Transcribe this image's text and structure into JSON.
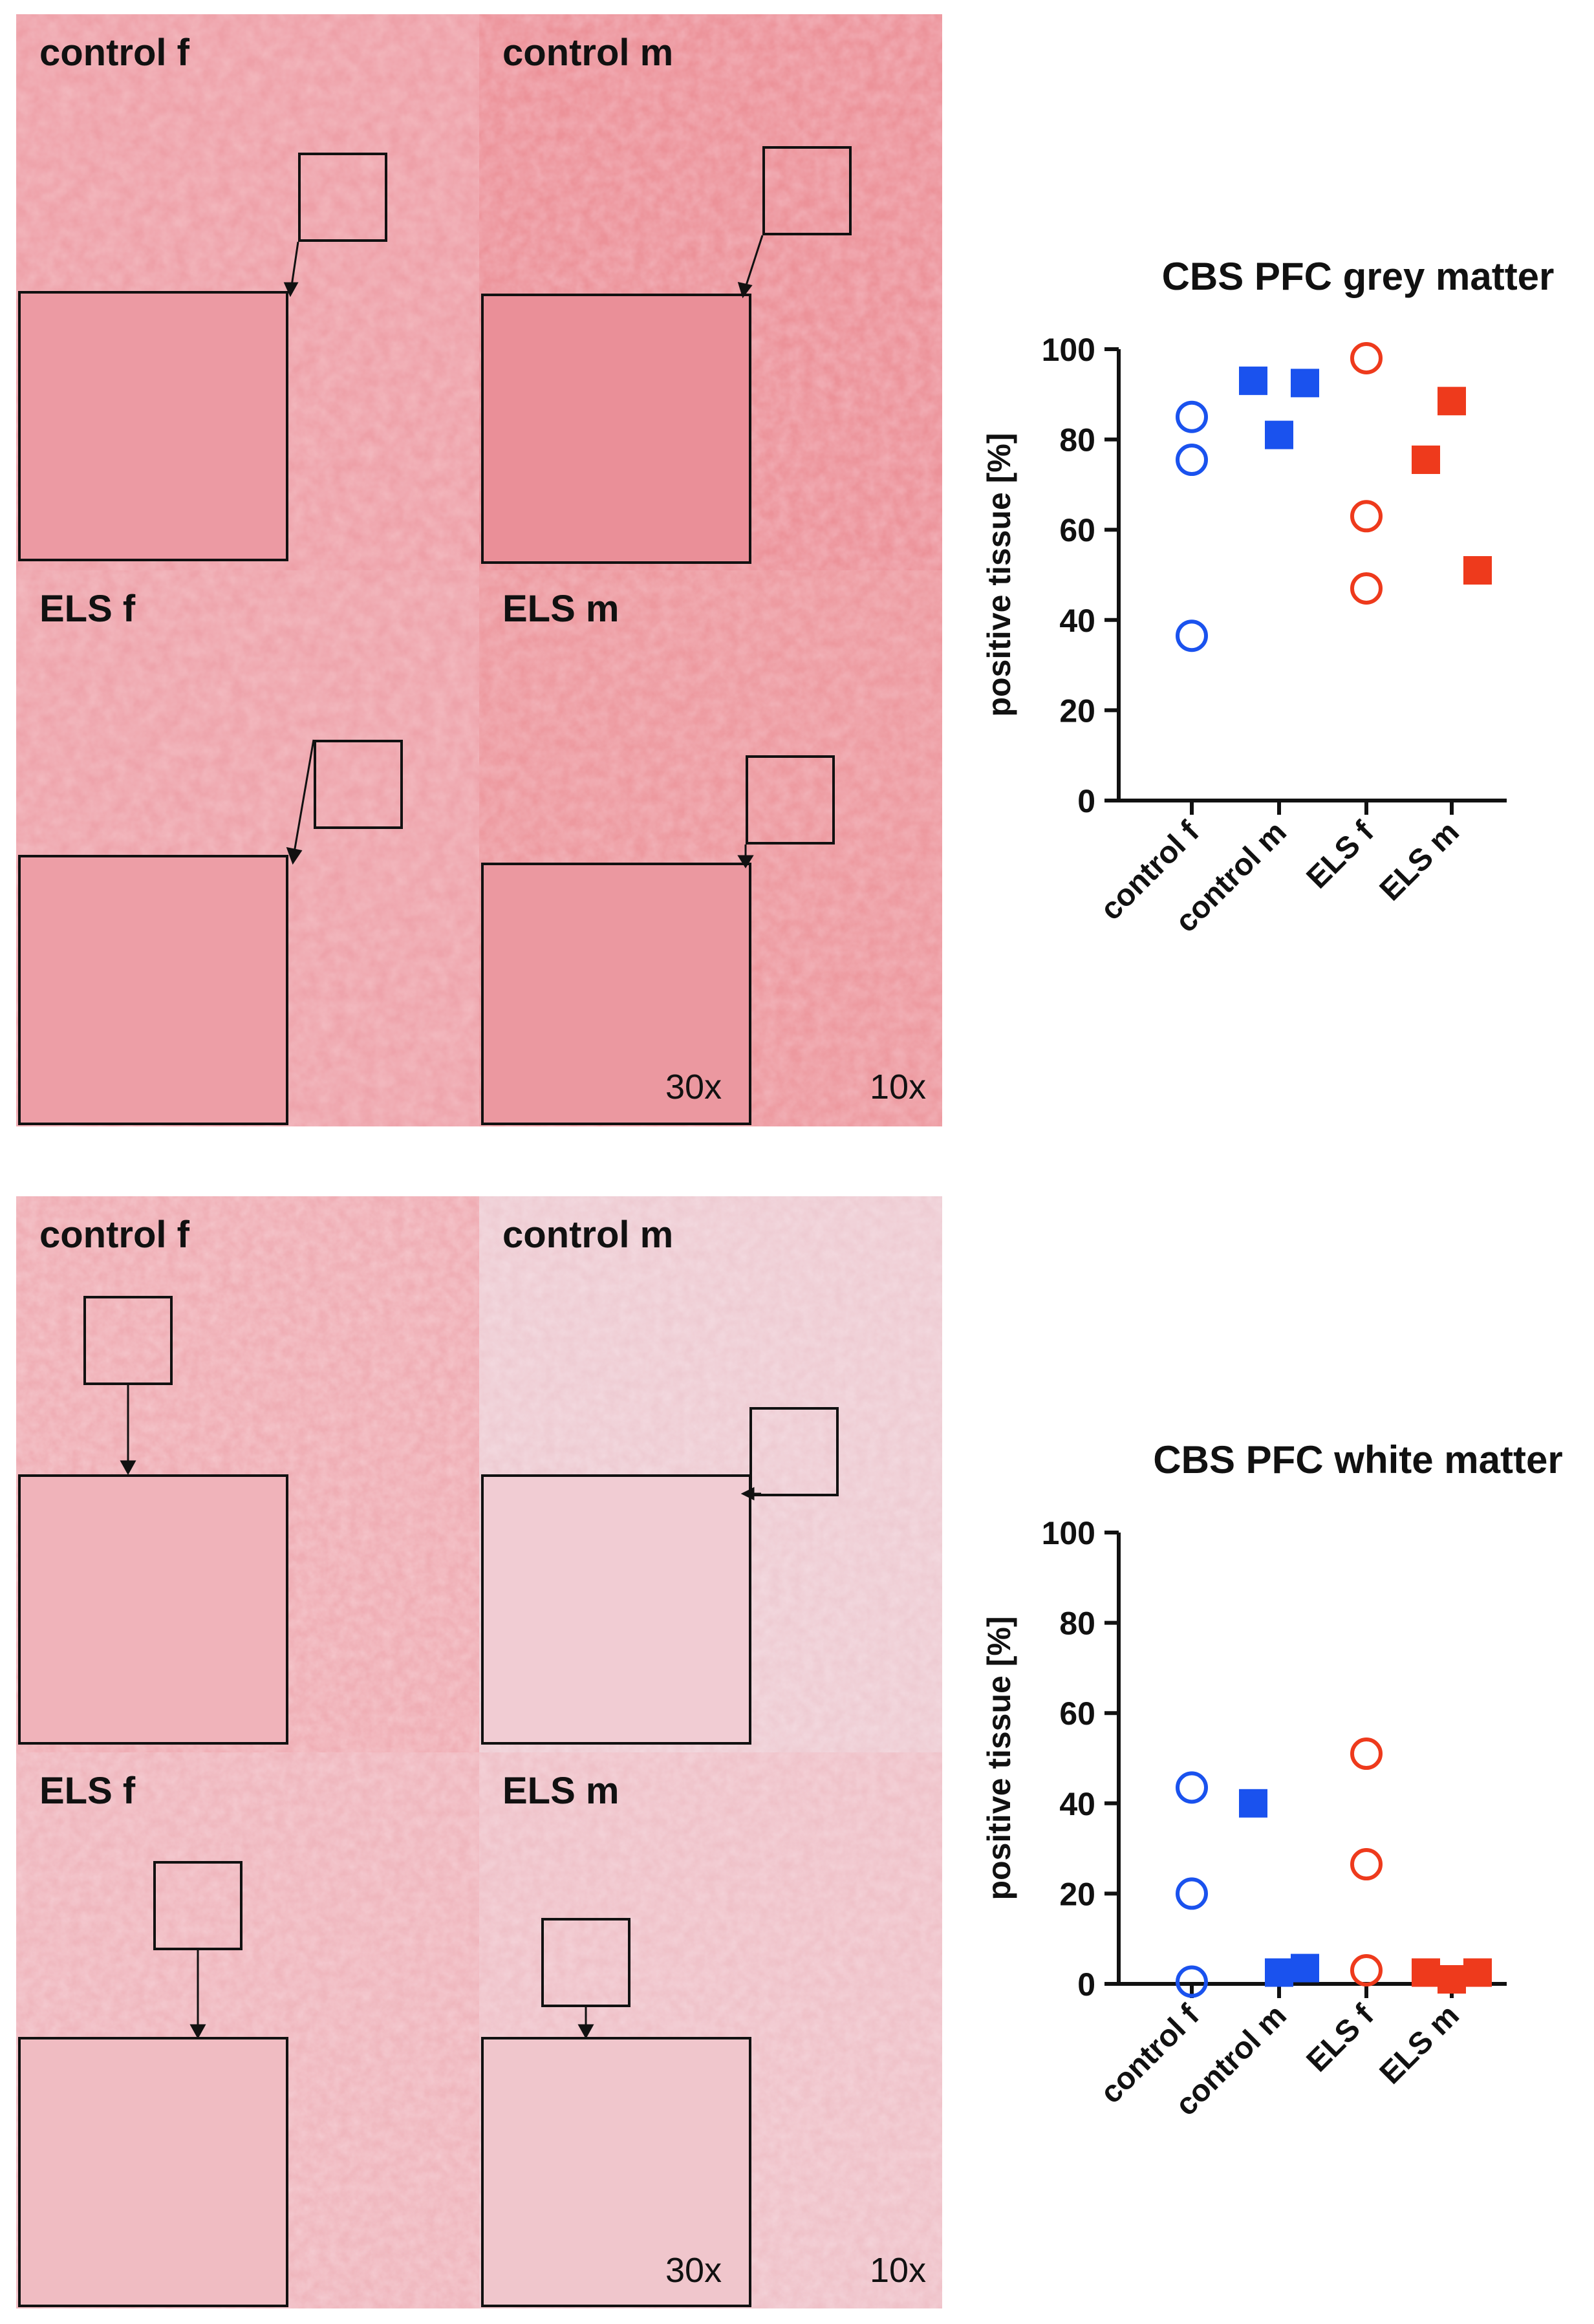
{
  "figure": {
    "top_panels": [
      {
        "key": "control_f",
        "label": "control f"
      },
      {
        "key": "control_m",
        "label": "control m"
      },
      {
        "key": "els_f",
        "label": "ELS f"
      },
      {
        "key": "els_m",
        "label": "ELS m"
      }
    ],
    "bottom_panels": [
      {
        "key": "control_f",
        "label": "control f"
      },
      {
        "key": "control_m",
        "label": "control m"
      },
      {
        "key": "els_f",
        "label": "ELS f"
      },
      {
        "key": "els_m",
        "label": "ELS m"
      }
    ],
    "magnification_inset": "30x",
    "magnification_overview": "10x",
    "colors": {
      "control": "#1a52ee",
      "els": "#ee3a1c",
      "tissue_grey": "#ec9da5",
      "tissue_white": "#edc3ca"
    }
  },
  "chart_data": [
    {
      "type": "scatter",
      "title": "CBS PFC grey matter",
      "ylabel": "positive tissue [%]",
      "xlabel": "",
      "ylim": [
        0,
        100
      ],
      "yticks": [
        0,
        20,
        40,
        60,
        80,
        100
      ],
      "categories": [
        "control f",
        "control m",
        "ELS f",
        "ELS m"
      ],
      "series": [
        {
          "category": "control f",
          "marker": "open-circle",
          "color": "#1a52ee",
          "values": [
            85,
            75.5,
            36.5
          ]
        },
        {
          "category": "control m",
          "marker": "filled-square",
          "color": "#1a52ee",
          "values": [
            93,
            81,
            92.5
          ]
        },
        {
          "category": "ELS f",
          "marker": "open-circle",
          "color": "#ee3a1c",
          "values": [
            98,
            63,
            47
          ]
        },
        {
          "category": "ELS m",
          "marker": "filled-square",
          "color": "#ee3a1c",
          "values": [
            88.5,
            75.5,
            51
          ]
        }
      ]
    },
    {
      "type": "scatter",
      "title": "CBS PFC white matter",
      "ylabel": "positive tissue [%]",
      "xlabel": "",
      "ylim": [
        0,
        100
      ],
      "yticks": [
        0,
        20,
        40,
        60,
        80,
        100
      ],
      "categories": [
        "control f",
        "control m",
        "ELS f",
        "ELS m"
      ],
      "series": [
        {
          "category": "control f",
          "marker": "open-circle",
          "color": "#1a52ee",
          "values": [
            43.5,
            20,
            0.5
          ]
        },
        {
          "category": "control m",
          "marker": "filled-square",
          "color": "#1a52ee",
          "values": [
            40,
            2.5,
            3.5
          ]
        },
        {
          "category": "ELS f",
          "marker": "open-circle",
          "color": "#ee3a1c",
          "values": [
            51,
            26.5,
            3
          ]
        },
        {
          "category": "ELS m",
          "marker": "filled-square",
          "color": "#ee3a1c",
          "values": [
            1,
            2.5,
            2.5
          ]
        }
      ]
    }
  ]
}
